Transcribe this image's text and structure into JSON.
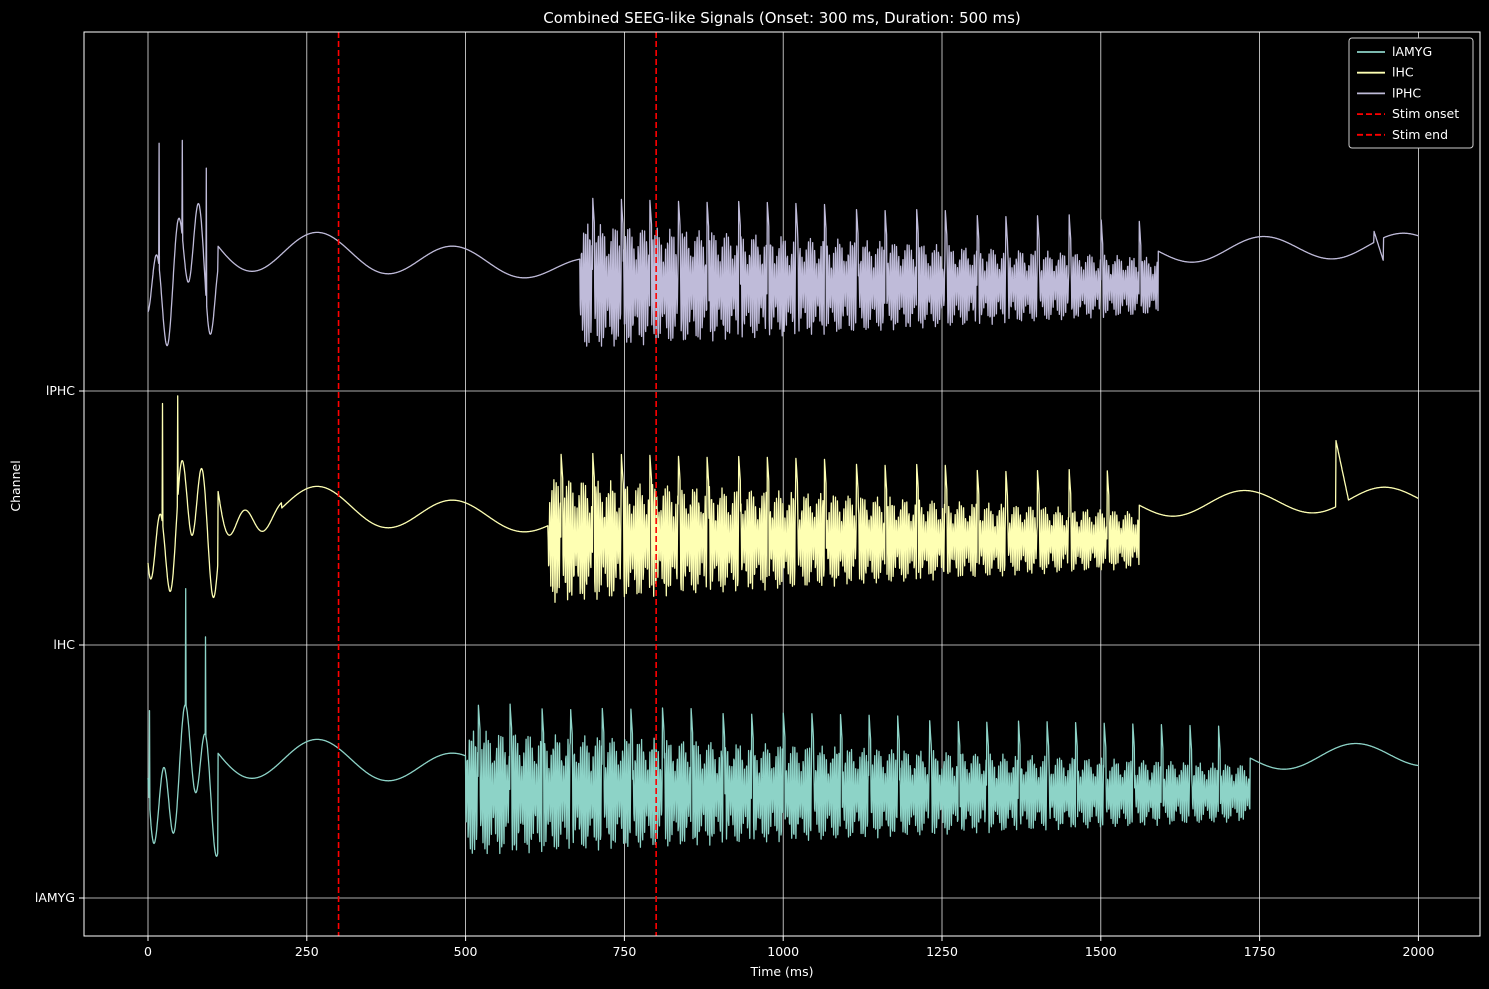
{
  "chart_data": {
    "type": "line",
    "title": "Combined SEEG-like Signals (Onset: 300 ms, Duration: 500 ms)",
    "xlabel": "Time (ms)",
    "ylabel": "Channel",
    "xlim": [
      -100,
      2100
    ],
    "x_ticks": [
      0,
      250,
      500,
      750,
      1000,
      1250,
      1500,
      1750,
      2000
    ],
    "y_ticks": [
      "lAMYG",
      "lHC",
      "lPHC"
    ],
    "grid": true,
    "legend_position": "top-right",
    "colors": {
      "background": "#000000",
      "foreground": "#ffffff",
      "lAMYG": "#8dd3c7",
      "lHC": "#feffb3",
      "lPHC": "#bfbbd9",
      "stim": "#ff0000"
    },
    "series": [
      {
        "name": "lAMYG",
        "channel_index": 0,
        "burst_start_ms": 500,
        "burst_end_ms": 1735,
        "spike_times_ms": [
          520,
          570,
          620,
          665,
          715,
          760,
          810,
          855,
          905,
          950,
          1000,
          1045,
          1090,
          1135,
          1180,
          1230,
          1275,
          1320,
          1370,
          1415,
          1460,
          1505,
          1550,
          1595,
          1640,
          1685
        ]
      },
      {
        "name": "lHC",
        "channel_index": 1,
        "burst_start_ms": 630,
        "burst_end_ms": 1560,
        "spike_times_ms": [
          650,
          700,
          745,
          790,
          835,
          880,
          930,
          975,
          1020,
          1065,
          1115,
          1160,
          1210,
          1255,
          1305,
          1350,
          1400,
          1450,
          1510
        ]
      },
      {
        "name": "lPHC",
        "channel_index": 2,
        "burst_start_ms": 680,
        "burst_end_ms": 1590,
        "spike_times_ms": [
          700,
          745,
          790,
          835,
          880,
          930,
          975,
          1020,
          1065,
          1115,
          1160,
          1210,
          1255,
          1305,
          1350,
          1400,
          1450,
          1500,
          1560
        ]
      }
    ],
    "vertical_lines": [
      {
        "name": "Stim onset",
        "x": 300,
        "style": "dashed"
      },
      {
        "name": "Stim end",
        "x": 800,
        "style": "dashed"
      }
    ],
    "legend": [
      "lAMYG",
      "lHC",
      "lPHC",
      "Stim onset",
      "Stim end"
    ]
  }
}
